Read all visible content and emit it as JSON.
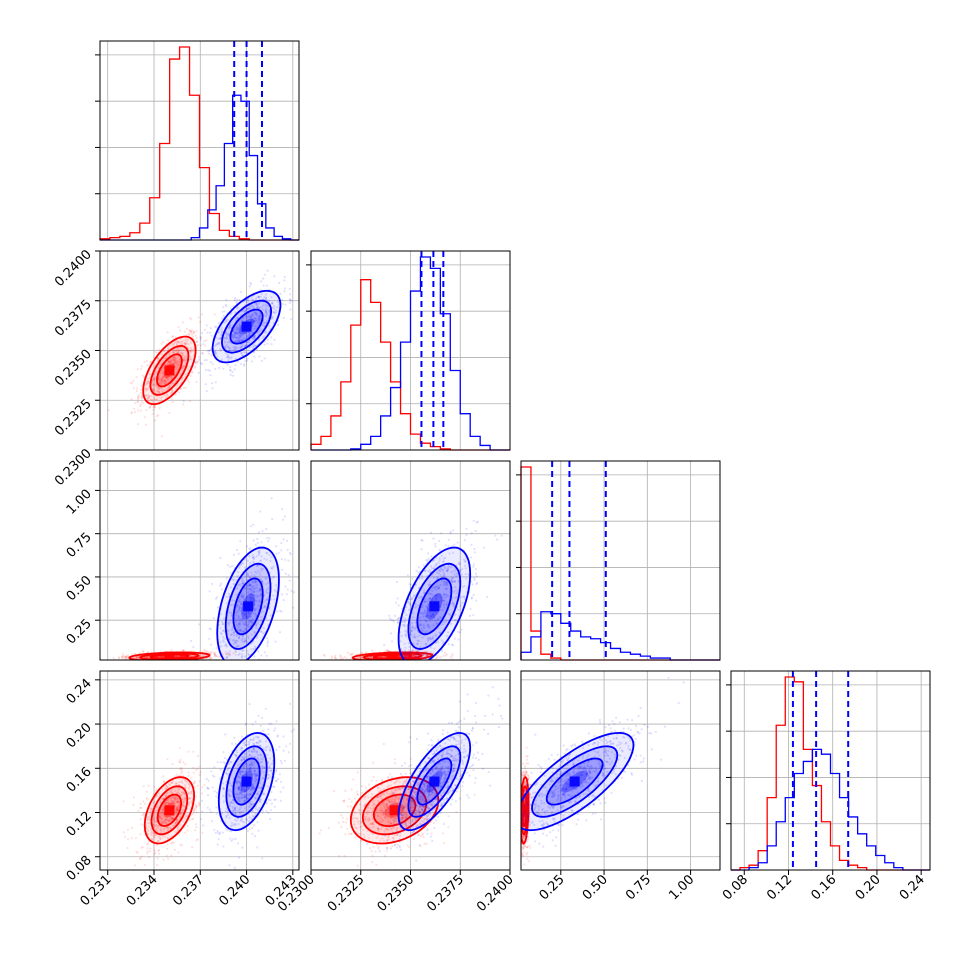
{
  "chart_data": {
    "type": "corner",
    "title": "",
    "colors": {
      "series_a": "#ff0000",
      "series_b": "#0000ff",
      "grid": "#b0b0b0"
    },
    "grid": true,
    "series": [
      {
        "name": "",
        "color": "#ff0000"
      },
      {
        "name": "",
        "color": "#0000ff"
      }
    ],
    "parameters": [
      {
        "range": [
          0.2305,
          0.2434
        ],
        "ticks": [
          0.231,
          0.234,
          0.237,
          0.24,
          0.243
        ],
        "tick_labels": [
          "0.231",
          "0.234",
          "0.237",
          "0.240",
          "0.243"
        ]
      },
      {
        "range": [
          0.23,
          0.24
        ],
        "ticks": [
          0.23,
          0.2325,
          0.235,
          0.2375,
          0.24
        ],
        "tick_labels": [
          "0.2300",
          "0.2325",
          "0.2350",
          "0.2375",
          "0.2400"
        ]
      },
      {
        "range": [
          0.02,
          1.17
        ],
        "ticks": [
          0.25,
          0.5,
          0.75,
          1.0
        ],
        "tick_labels": [
          "0.25",
          "0.50",
          "0.75",
          "1.00"
        ]
      },
      {
        "range": [
          0.068,
          0.248
        ],
        "ticks": [
          0.08,
          0.12,
          0.16,
          0.2,
          0.24
        ],
        "tick_labels": [
          "0.08",
          "0.12",
          "0.16",
          "0.20",
          "0.24"
        ]
      }
    ],
    "histograms": [
      {
        "red": {
          "bins": [
            0.2305,
            0.2434
          ],
          "counts": [
            1,
            2,
            3,
            6,
            14,
            35,
            80,
            150,
            160,
            120,
            60,
            22,
            8,
            3,
            1,
            0,
            0,
            0,
            0,
            0
          ]
        },
        "blue": {
          "bins": [
            0.2305,
            0.2434
          ],
          "counts": [
            0,
            0,
            0,
            0,
            0,
            0,
            0,
            0,
            0,
            0,
            0,
            2,
            10,
            25,
            45,
            80,
            120,
            115,
            70,
            30,
            10,
            3,
            1,
            0
          ]
        },
        "quantiles_blue": [
          0.2392,
          0.24,
          0.241
        ]
      },
      {
        "red": {
          "bins": [
            0.23,
            0.24
          ],
          "counts": [
            5,
            12,
            30,
            60,
            110,
            150,
            130,
            95,
            60,
            32,
            14,
            6,
            3,
            1,
            0,
            0,
            0,
            0,
            0,
            0
          ]
        },
        "blue": {
          "bins": [
            0.23,
            0.24
          ],
          "counts": [
            0,
            0,
            0,
            0,
            1,
            5,
            12,
            30,
            55,
            95,
            140,
            170,
            160,
            120,
            70,
            32,
            12,
            4,
            0,
            0
          ]
        },
        "quantiles_blue": [
          0.23555,
          0.23615,
          0.23665
        ]
      },
      {
        "red": {
          "bins": [
            0.02,
            1.17
          ],
          "counts": [
            100,
            15,
            3,
            1,
            0,
            0,
            0,
            0,
            0,
            0,
            0,
            0,
            0,
            0,
            0,
            0,
            0,
            0,
            0,
            0
          ]
        },
        "blue": {
          "bins": [
            0.02,
            1.17
          ],
          "counts": [
            4,
            12,
            25,
            24,
            19,
            15,
            12,
            11,
            9,
            6,
            4,
            3,
            2,
            1,
            1,
            0,
            0,
            0,
            0,
            0
          ]
        },
        "quantiles_blue": [
          0.2,
          0.3,
          0.51
        ]
      },
      {
        "red": {
          "bins": [
            0.068,
            0.248
          ],
          "counts": [
            0,
            1,
            2,
            8,
            30,
            60,
            80,
            78,
            50,
            35,
            20,
            10,
            4,
            2,
            1,
            0,
            0,
            0,
            0,
            0,
            0,
            0
          ]
        },
        "blue": {
          "bins": [
            0.068,
            0.248
          ],
          "counts": [
            0,
            0,
            1,
            3,
            10,
            20,
            30,
            40,
            45,
            50,
            48,
            40,
            30,
            22,
            15,
            10,
            6,
            3,
            1,
            0,
            0,
            0
          ]
        },
        "quantiles_blue": [
          0.124,
          0.145,
          0.174
        ]
      }
    ],
    "pairs": [
      {
        "row": 1,
        "col": 0,
        "red": {
          "mean": [
            0.235,
            0.234
          ],
          "sd": [
            0.00085,
            0.00085
          ],
          "corr": 0.6
        },
        "blue": {
          "mean": [
            0.24,
            0.2362
          ],
          "sd": [
            0.0011,
            0.0009
          ],
          "corr": 0.6
        }
      },
      {
        "row": 2,
        "col": 0,
        "red": {
          "mean": [
            0.235,
            0.04
          ],
          "sd": [
            0.0013,
            0.012
          ],
          "corr": 0.3
        },
        "blue": {
          "mean": [
            0.2401,
            0.33
          ],
          "sd": [
            0.001,
            0.17
          ],
          "corr": 0.45
        }
      },
      {
        "row": 2,
        "col": 1,
        "red": {
          "mean": [
            0.2341,
            0.04
          ],
          "sd": [
            0.001,
            0.012
          ],
          "corr": 0.3
        },
        "blue": {
          "mean": [
            0.2362,
            0.33
          ],
          "sd": [
            0.0009,
            0.17
          ],
          "corr": 0.55
        }
      },
      {
        "row": 3,
        "col": 0,
        "red": {
          "mean": [
            0.235,
            0.122
          ],
          "sd": [
            0.0008,
            0.015
          ],
          "corr": 0.45
        },
        "blue": {
          "mean": [
            0.24,
            0.148
          ],
          "sd": [
            0.0009,
            0.022
          ],
          "corr": 0.4
        }
      },
      {
        "row": 3,
        "col": 1,
        "red": {
          "mean": [
            0.2342,
            0.122
          ],
          "sd": [
            0.0011,
            0.015
          ],
          "corr": 0.3
        },
        "blue": {
          "mean": [
            0.2362,
            0.148
          ],
          "sd": [
            0.0009,
            0.022
          ],
          "corr": 0.7
        }
      },
      {
        "row": 3,
        "col": 2,
        "red": {
          "mean": [
            0.04,
            0.122
          ],
          "sd": [
            0.012,
            0.015
          ],
          "corr": 0.2
        },
        "blue": {
          "mean": [
            0.33,
            0.148
          ],
          "sd": [
            0.17,
            0.022
          ],
          "corr": 0.75
        }
      }
    ]
  }
}
